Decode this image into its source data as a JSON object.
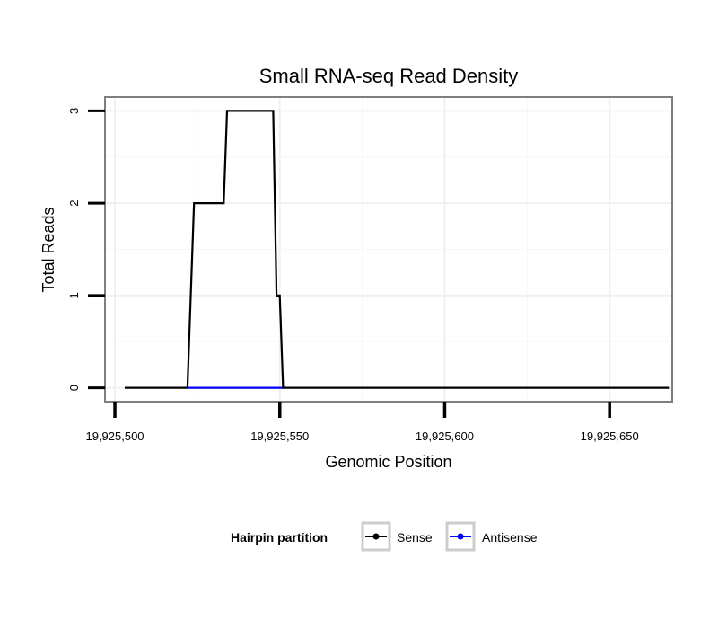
{
  "chart_data": {
    "type": "line",
    "title": "Small RNA-seq Read Density",
    "xlabel": "Genomic Position",
    "ylabel": "Total Reads",
    "xlim": [
      19925497,
      19925669
    ],
    "ylim": [
      -0.15,
      3.15
    ],
    "x_ticks": [
      19925500,
      19925550,
      19925600,
      19925650
    ],
    "x_tick_labels": [
      "19,925,500",
      "19,925,550",
      "19,925,600",
      "19,925,650"
    ],
    "y_ticks": [
      0,
      1,
      2,
      3
    ],
    "y_tick_labels": [
      "0",
      "1",
      "2",
      "3"
    ],
    "grid": true,
    "legend": {
      "title": "Hairpin partition",
      "position": "bottom"
    },
    "series": [
      {
        "name": "Sense",
        "color": "#000000",
        "x": [
          19925503,
          19925522,
          19925524,
          19925533,
          19925534,
          19925548,
          19925549,
          19925550,
          19925551,
          19925668
        ],
        "y": [
          0,
          0,
          2,
          2,
          3,
          3,
          1,
          1,
          0,
          0
        ]
      },
      {
        "name": "Antisense",
        "color": "#0000ff",
        "x": [
          19925522,
          19925551
        ],
        "y": [
          0,
          0
        ]
      }
    ]
  }
}
